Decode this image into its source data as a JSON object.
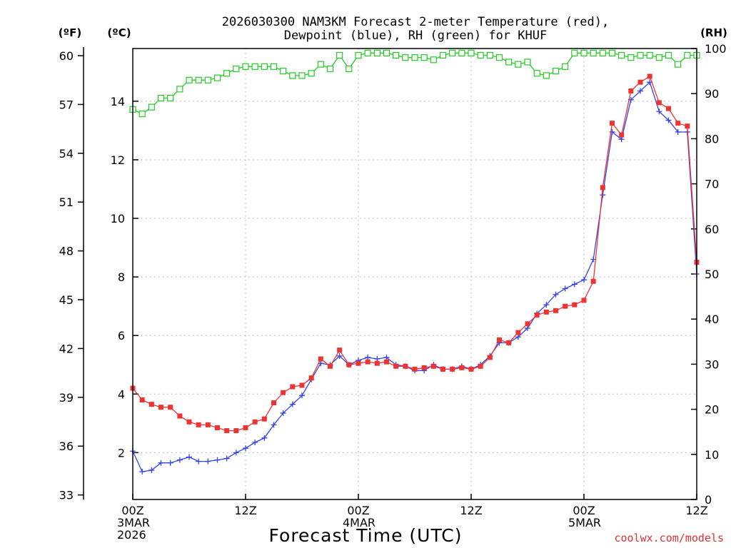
{
  "chart_data": {
    "type": "line",
    "title_line1": "2026030300 NAM3KM Forecast 2-meter Temperature (red),",
    "title_line2": "Dewpoint (blue), RH (green) for KHUF",
    "xlabel": "Forecast Time (UTC)",
    "credit": "coolwx.com/models",
    "units": {
      "fahrenheit": "(ºF)",
      "celsius": "(ºC)",
      "rh": "(RH)"
    },
    "x_hours_range": [
      0,
      60
    ],
    "celsius_range": [
      0.4,
      15.8
    ],
    "rh_range": [
      0,
      100
    ],
    "celsius_ticks": [
      {
        "v": 2,
        "label": "2"
      },
      {
        "v": 4,
        "label": "4"
      },
      {
        "v": 6,
        "label": "6"
      },
      {
        "v": 8,
        "label": "8"
      },
      {
        "v": 10,
        "label": "10"
      },
      {
        "v": 12,
        "label": "12"
      },
      {
        "v": 14,
        "label": "14"
      }
    ],
    "fahrenheit_ticks": [
      {
        "v": 33,
        "label": "33"
      },
      {
        "v": 36,
        "label": "36"
      },
      {
        "v": 39,
        "label": "39"
      },
      {
        "v": 42,
        "label": "42"
      },
      {
        "v": 45,
        "label": "45"
      },
      {
        "v": 48,
        "label": "48"
      },
      {
        "v": 51,
        "label": "51"
      },
      {
        "v": 54,
        "label": "54"
      },
      {
        "v": 57,
        "label": "57"
      },
      {
        "v": 60,
        "label": "60"
      }
    ],
    "rh_ticks": [
      {
        "v": 0,
        "label": "0"
      },
      {
        "v": 10,
        "label": "10"
      },
      {
        "v": 20,
        "label": "20"
      },
      {
        "v": 30,
        "label": "30"
      },
      {
        "v": 40,
        "label": "40"
      },
      {
        "v": 50,
        "label": "50"
      },
      {
        "v": 60,
        "label": "60"
      },
      {
        "v": 70,
        "label": "70"
      },
      {
        "v": 80,
        "label": "80"
      },
      {
        "v": 90,
        "label": "90"
      },
      {
        "v": 100,
        "label": "100"
      }
    ],
    "x_ticks": [
      {
        "h": 0,
        "lines": [
          "00Z",
          "3MAR",
          "2026"
        ]
      },
      {
        "h": 12,
        "lines": [
          "12Z"
        ]
      },
      {
        "h": 24,
        "lines": [
          "00Z",
          "4MAR"
        ]
      },
      {
        "h": 36,
        "lines": [
          "12Z"
        ]
      },
      {
        "h": 48,
        "lines": [
          "00Z",
          "5MAR"
        ]
      },
      {
        "h": 60,
        "lines": [
          "12Z"
        ]
      }
    ],
    "series": [
      {
        "name": "Temperature",
        "unit": "C",
        "color": "#ee3333",
        "marker": "filled-square",
        "hours": [
          0,
          1,
          2,
          3,
          4,
          5,
          6,
          7,
          8,
          9,
          10,
          11,
          12,
          13,
          14,
          15,
          16,
          17,
          18,
          19,
          20,
          21,
          22,
          23,
          24,
          25,
          26,
          27,
          28,
          29,
          30,
          31,
          32,
          33,
          34,
          35,
          36,
          37,
          38,
          39,
          40,
          41,
          42,
          43,
          44,
          45,
          46,
          47,
          48,
          49,
          50,
          51,
          52,
          53,
          54,
          55,
          56,
          57,
          58,
          59,
          60
        ],
        "values": [
          4.2,
          3.8,
          3.65,
          3.55,
          3.55,
          3.25,
          3.05,
          2.95,
          2.95,
          2.85,
          2.75,
          2.75,
          2.85,
          3.05,
          3.15,
          3.7,
          4.05,
          4.25,
          4.3,
          4.55,
          5.2,
          4.95,
          5.5,
          5.0,
          5.05,
          5.1,
          5.05,
          5.1,
          4.95,
          4.95,
          4.85,
          4.9,
          4.95,
          4.85,
          4.85,
          4.9,
          4.85,
          4.95,
          5.25,
          5.85,
          5.75,
          6.1,
          6.4,
          6.7,
          6.8,
          6.85,
          7.0,
          7.05,
          7.2,
          7.85,
          11.05,
          13.25,
          12.85,
          14.35,
          14.65,
          14.85,
          13.95,
          13.75,
          13.25,
          13.15,
          8.5
        ],
        "labels": []
      },
      {
        "name": "Dewpoint",
        "unit": "C",
        "color": "#3344ee",
        "marker": "plus",
        "hours": [
          0,
          1,
          2,
          3,
          4,
          5,
          6,
          7,
          8,
          9,
          10,
          11,
          12,
          13,
          14,
          15,
          16,
          17,
          18,
          19,
          20,
          21,
          22,
          23,
          24,
          25,
          26,
          27,
          28,
          29,
          30,
          31,
          32,
          33,
          34,
          35,
          36,
          37,
          38,
          39,
          40,
          41,
          42,
          43,
          44,
          45,
          46,
          47,
          48,
          49,
          50,
          51,
          52,
          53,
          54,
          55,
          56,
          57,
          58,
          59,
          60
        ],
        "values": [
          2.05,
          1.35,
          1.4,
          1.65,
          1.65,
          1.75,
          1.85,
          1.7,
          1.7,
          1.75,
          1.8,
          2.0,
          2.15,
          2.35,
          2.5,
          2.95,
          3.35,
          3.65,
          3.95,
          4.5,
          5.05,
          5.0,
          5.3,
          5.0,
          5.15,
          5.25,
          5.2,
          5.25,
          5.0,
          4.95,
          4.8,
          4.8,
          5.0,
          4.85,
          4.85,
          4.95,
          4.85,
          5.0,
          5.3,
          5.75,
          5.75,
          5.95,
          6.25,
          6.75,
          7.05,
          7.4,
          7.6,
          7.75,
          7.9,
          8.6,
          10.8,
          12.95,
          12.7,
          14.05,
          14.35,
          14.65,
          13.65,
          13.35,
          12.95,
          12.95,
          8.1
        ],
        "labels": []
      },
      {
        "name": "RH",
        "unit": "%",
        "color": "#22cc22",
        "marker": "open-square",
        "hours": [
          0,
          1,
          2,
          3,
          4,
          5,
          6,
          7,
          8,
          9,
          10,
          11,
          12,
          13,
          14,
          15,
          16,
          17,
          18,
          19,
          20,
          21,
          22,
          23,
          24,
          25,
          26,
          27,
          28,
          29,
          30,
          31,
          32,
          33,
          34,
          35,
          36,
          37,
          38,
          39,
          40,
          41,
          42,
          43,
          44,
          45,
          46,
          47,
          48,
          49,
          50,
          51,
          52,
          53,
          54,
          55,
          56,
          57,
          58,
          59,
          60
        ],
        "values": [
          86.5,
          85.5,
          87,
          89,
          89,
          91,
          93,
          93,
          93,
          93.5,
          94.5,
          95.5,
          96,
          96,
          96,
          96,
          95,
          94,
          94,
          94.5,
          96.5,
          95.5,
          98.5,
          95.5,
          98.5,
          99,
          99,
          99,
          98.5,
          98,
          98,
          98,
          97.5,
          98.5,
          99,
          99,
          99,
          98.5,
          98.5,
          98,
          97,
          96.5,
          97,
          94.5,
          94,
          95,
          96,
          99,
          99,
          99,
          99,
          99,
          98.5,
          98,
          98.5,
          98.5,
          98,
          98.5,
          96.5,
          98.5,
          98.5
        ],
        "labels": []
      }
    ]
  }
}
